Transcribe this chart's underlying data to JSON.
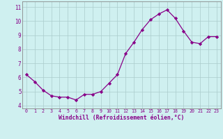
{
  "x": [
    0,
    1,
    2,
    3,
    4,
    5,
    6,
    7,
    8,
    9,
    10,
    11,
    12,
    13,
    14,
    15,
    16,
    17,
    18,
    19,
    20,
    21,
    22,
    23
  ],
  "y": [
    6.2,
    5.7,
    5.1,
    4.7,
    4.6,
    4.6,
    4.4,
    4.8,
    4.8,
    5.0,
    5.6,
    6.2,
    7.7,
    8.5,
    9.4,
    10.1,
    10.5,
    10.8,
    10.2,
    9.3,
    8.5,
    8.4,
    8.9,
    8.9
  ],
  "line_color": "#880088",
  "marker": "D",
  "marker_size": 2.2,
  "bg_color": "#cff0f0",
  "grid_color": "#aacccc",
  "xlabel": "Windchill (Refroidissement éolien,°C)",
  "xlabel_color": "#880088",
  "tick_color": "#880088",
  "ylabel_ticks": [
    4,
    5,
    6,
    7,
    8,
    9,
    10,
    11
  ],
  "xlim": [
    -0.5,
    23.5
  ],
  "ylim": [
    3.8,
    11.4
  ],
  "xticks": [
    0,
    1,
    2,
    3,
    4,
    5,
    6,
    7,
    8,
    9,
    10,
    11,
    12,
    13,
    14,
    15,
    16,
    17,
    18,
    19,
    20,
    21,
    22,
    23
  ]
}
